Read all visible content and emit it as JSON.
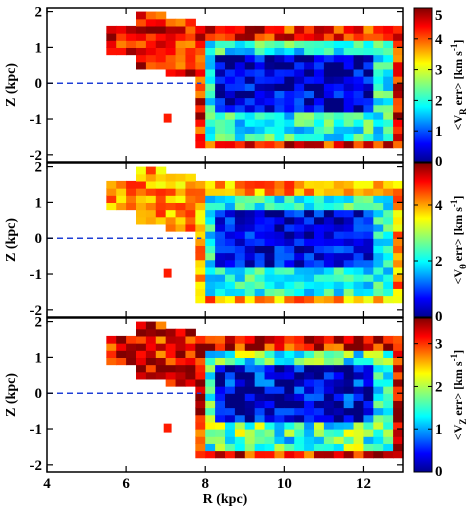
{
  "chart_data": [
    {
      "type": "heatmap",
      "panel": "top",
      "xlabel": "",
      "ylabel": "Z (kpc)",
      "xlim": [
        4,
        13
      ],
      "ylim": [
        -2.2,
        2.1
      ],
      "x_ticks": [
        4,
        6,
        8,
        10,
        12
      ],
      "y_ticks": [
        -2,
        -1,
        0,
        1,
        2
      ],
      "colorbar": {
        "label_main": "<V",
        "label_sub": "R",
        "label_rest": " err> [km s",
        "label_sup": "-1",
        "label_end": "]",
        "range": [
          0,
          5
        ],
        "ticks": [
          0,
          1,
          2,
          3,
          4,
          5
        ]
      },
      "reference_line": {
        "z": 0,
        "style": "dashed",
        "color": "#1f3fd6"
      },
      "fields": {
        "edge": 4.3,
        "mid": 2.0,
        "core": 0.4
      }
    },
    {
      "type": "heatmap",
      "panel": "middle",
      "xlabel": "",
      "ylabel": "Z (kpc)",
      "xlim": [
        4,
        13
      ],
      "ylim": [
        -2.2,
        2.1
      ],
      "x_ticks": [
        4,
        6,
        8,
        10,
        12
      ],
      "y_ticks": [
        -2,
        -1,
        0,
        1,
        2
      ],
      "colorbar": {
        "label_main": "<V",
        "label_sub": "θ",
        "label_rest": " err> [km s",
        "label_sup": "-1",
        "label_end": "]",
        "range": [
          0,
          5.5
        ],
        "ticks": [
          0,
          2,
          4
        ]
      },
      "reference_line": {
        "z": 0,
        "style": "dashed",
        "color": "#1f3fd6"
      },
      "fields": {
        "edge": 4.0,
        "mid": 2.2,
        "core": 0.6
      }
    },
    {
      "type": "heatmap",
      "panel": "bottom",
      "xlabel": "R (kpc)",
      "ylabel": "Z (kpc)",
      "xlim": [
        4,
        13
      ],
      "ylim": [
        -2.2,
        2.1
      ],
      "x_ticks": [
        4,
        6,
        8,
        10,
        12
      ],
      "y_ticks": [
        -2,
        -1,
        0,
        1,
        2
      ],
      "colorbar": {
        "label_main": "<V",
        "label_sub": "Z",
        "label_rest": " err> [km s",
        "label_sup": "-1",
        "label_end": "]",
        "range": [
          0,
          3.6
        ],
        "ticks": [
          0,
          1,
          2,
          3
        ]
      },
      "reference_line": {
        "z": 0,
        "style": "dashed",
        "color": "#1f3fd6"
      },
      "fields": {
        "edge": 3.3,
        "mid": 1.6,
        "core": 0.3
      }
    }
  ]
}
